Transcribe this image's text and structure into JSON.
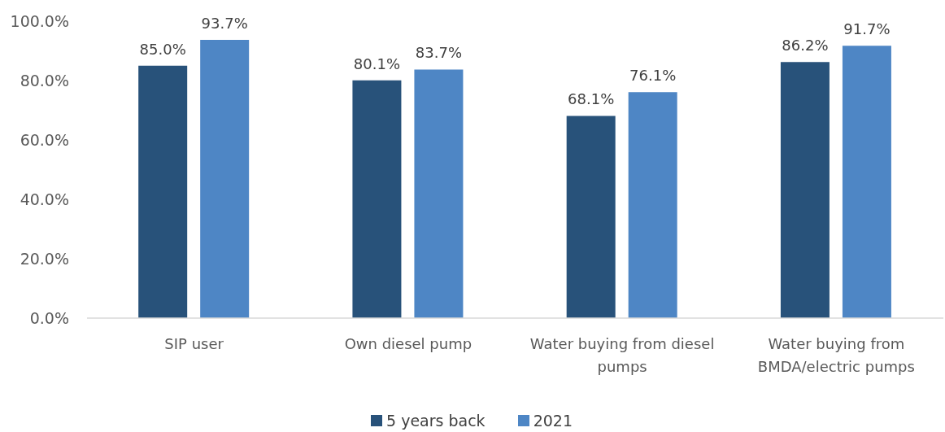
{
  "chart_data": {
    "type": "bar",
    "categories": [
      "SIP user",
      "Own diesel pump",
      "Water buying from diesel pumps",
      "Water buying from BMDA/electric pumps"
    ],
    "series": [
      {
        "name": "5 years back",
        "color": "#28527a",
        "values": [
          85.0,
          80.1,
          68.1,
          86.2
        ],
        "value_labels": [
          "85.0%",
          "80.1%",
          "68.1%",
          "86.2%"
        ]
      },
      {
        "name": "2021",
        "color": "#4e86c5",
        "values": [
          93.7,
          83.7,
          76.1,
          91.7
        ],
        "value_labels": [
          "93.7%",
          "83.7%",
          "76.1%",
          "91.7%"
        ]
      }
    ],
    "ylim": [
      0,
      100
    ],
    "yticks": [
      {
        "value": 0,
        "label": "0.0%"
      },
      {
        "value": 20,
        "label": "20.0%"
      },
      {
        "value": 40,
        "label": "40.0%"
      },
      {
        "value": 60,
        "label": "60.0%"
      },
      {
        "value": 80,
        "label": "80.0%"
      },
      {
        "value": 100,
        "label": "100.0%"
      }
    ],
    "legend": "bottom"
  }
}
